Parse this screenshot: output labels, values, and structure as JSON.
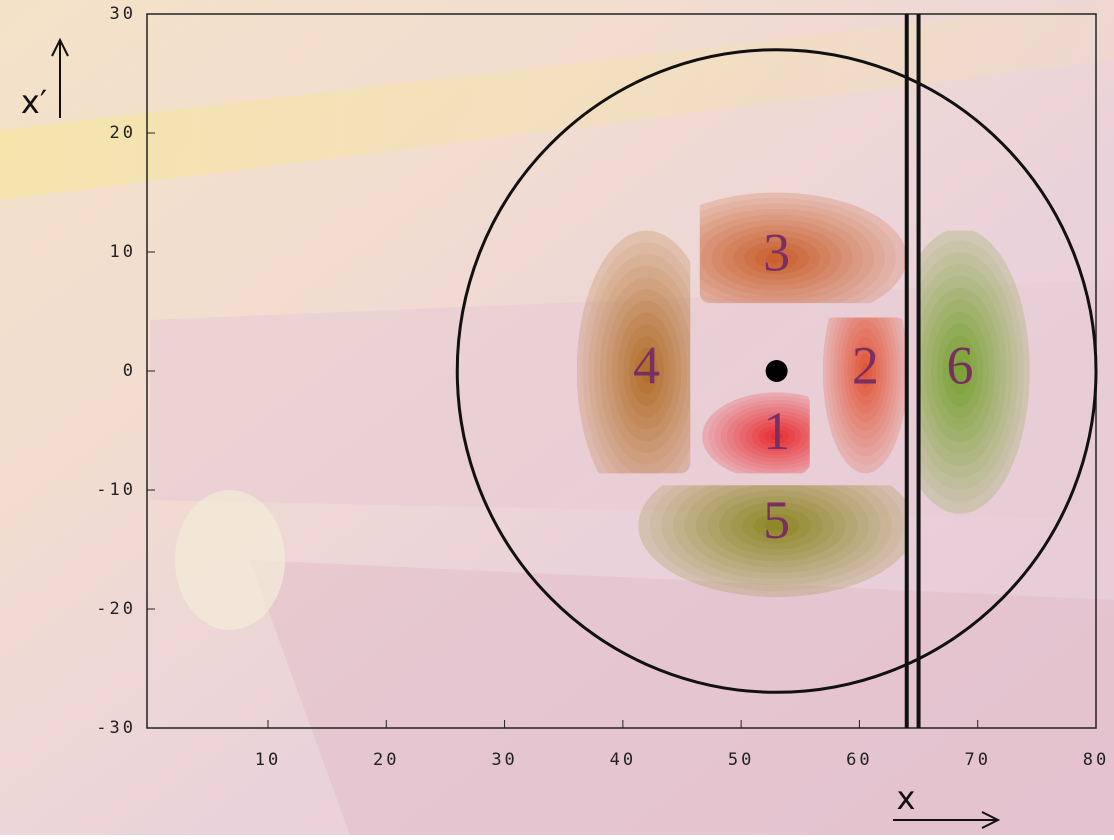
{
  "chart_data": {
    "type": "contour",
    "xlabel": "x",
    "ylabel": "x′",
    "xlim": [
      0,
      80
    ],
    "ylim": [
      -30,
      30
    ],
    "xticks": [
      10,
      20,
      30,
      40,
      50,
      60,
      70,
      80
    ],
    "yticks": [
      -30,
      -20,
      -10,
      0,
      10,
      20,
      30
    ],
    "circle": {
      "x": 53,
      "y": 0,
      "r": 27
    },
    "center_marker": [
      53,
      0
    ],
    "aperture": [
      64,
      65
    ],
    "regions": [
      {
        "label": "1",
        "color": "#e8282c",
        "center": [
          53,
          -5.5
        ],
        "extent": [
          46.7,
          55.8,
          -8.6,
          -1.8
        ]
      },
      {
        "label": "2",
        "color": "#e05030",
        "center": [
          60.5,
          0
        ],
        "extent": [
          56.9,
          64,
          -8.6,
          4.5
        ]
      },
      {
        "label": "3",
        "color": "#c85a26",
        "center": [
          53,
          9.5
        ],
        "extent": [
          46.5,
          64,
          5.7,
          15
        ]
      },
      {
        "label": "4",
        "color": "#b06a22",
        "center": [
          42,
          0
        ],
        "extent": [
          36.1,
          45.7,
          -8.6,
          11.8
        ]
      },
      {
        "label": "5",
        "color": "#8a8420",
        "center": [
          53,
          -13
        ],
        "extent": [
          41.3,
          64,
          -19,
          -9.6
        ]
      },
      {
        "label": "6",
        "color": "#74a02c",
        "center": [
          68.5,
          0
        ],
        "extent": [
          64.9,
          74.4,
          -12,
          11.8
        ]
      }
    ]
  }
}
